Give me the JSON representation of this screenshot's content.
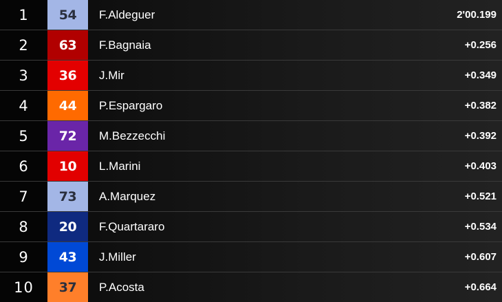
{
  "results": [
    {
      "position": "1",
      "number": "54",
      "rider": "F.Aldeguer",
      "time": "2'00.199",
      "color": "#a3b6e6",
      "text_color": "#2a2f3d"
    },
    {
      "position": "2",
      "number": "63",
      "rider": "F.Bagnaia",
      "time": "+0.256",
      "color": "#b10000",
      "text_color": "#ffffff"
    },
    {
      "position": "3",
      "number": "36",
      "rider": "J.Mir",
      "time": "+0.349",
      "color": "#e30000",
      "text_color": "#ffffff"
    },
    {
      "position": "4",
      "number": "44",
      "rider": "P.Espargaro",
      "time": "+0.382",
      "color": "#ff6a00",
      "text_color": "#ffffff"
    },
    {
      "position": "5",
      "number": "72",
      "rider": "M.Bezzecchi",
      "time": "+0.392",
      "color": "#6a25a8",
      "text_color": "#ffffff"
    },
    {
      "position": "6",
      "number": "10",
      "rider": "L.Marini",
      "time": "+0.403",
      "color": "#e20000",
      "text_color": "#ffffff"
    },
    {
      "position": "7",
      "number": "73",
      "rider": "A.Marquez",
      "time": "+0.521",
      "color": "#a3b6e6",
      "text_color": "#2a2f3d"
    },
    {
      "position": "8",
      "number": "20",
      "rider": "F.Quartararo",
      "time": "+0.534",
      "color": "#0f2a80",
      "text_color": "#ffffff"
    },
    {
      "position": "9",
      "number": "43",
      "rider": "J.Miller",
      "time": "+0.607",
      "color": "#0049d6",
      "text_color": "#ffffff"
    },
    {
      "position": "10",
      "number": "37",
      "rider": "P.Acosta",
      "time": "+0.664",
      "color": "#ff7f2a",
      "text_color": "#2a2f3d"
    }
  ]
}
